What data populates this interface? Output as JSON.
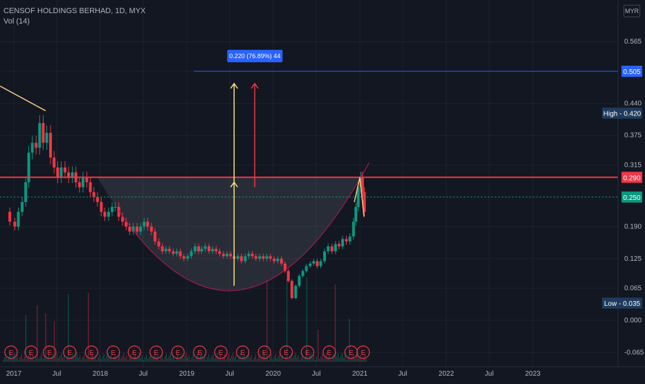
{
  "header": {
    "title": "CENSOF HOLDINGS BERHAD, 1D, MYX",
    "indicator": "Vol (14)",
    "currency": "MYR"
  },
  "chart_data": {
    "type": "candlestick",
    "title": "CENSOF HOLDINGS BERHAD, 1D, MYX",
    "y_ticks": [
      "0.565",
      "0.505",
      "0.440",
      "0.375",
      "0.315",
      "0.250",
      "0.190",
      "0.125",
      "0.065",
      "0.000",
      "-0.065"
    ],
    "x_ticks": [
      "2017",
      "Jul",
      "2018",
      "Jul",
      "2019",
      "Jul",
      "2020",
      "Jul",
      "2021",
      "Jul",
      "2022",
      "Jul",
      "2023"
    ],
    "price_labels": [
      {
        "text": "0.505",
        "value": 0.505,
        "color": "#2962ff"
      },
      {
        "text": "High - 0.420",
        "value": 0.42,
        "color": "#1e3a5c"
      },
      {
        "text": "0.290",
        "value": 0.29,
        "color": "#f23645"
      },
      {
        "text": "0.250",
        "value": 0.25,
        "color": "#089981"
      },
      {
        "text": "Low - 0.035",
        "value": 0.035,
        "color": "#1e3a5c"
      }
    ],
    "measure_label": "0.220 (76.89%) 44",
    "horizontal_lines": [
      {
        "value": 0.29,
        "color": "#f23645"
      },
      {
        "value": 0.505,
        "color": "#2962ff"
      },
      {
        "value": 0.25,
        "color": "#089981",
        "style": "dotted"
      }
    ],
    "earnings_markers": [
      "E",
      "E",
      "E",
      "E",
      "E",
      "E",
      "E",
      "E",
      "E",
      "E",
      "E",
      "E",
      "E",
      "E",
      "E",
      "E",
      "E",
      "E"
    ],
    "price_series": [
      [
        "2016-12-01",
        0.22
      ],
      [
        "2016-12-15",
        0.2
      ],
      [
        "2017-01-05",
        0.19
      ],
      [
        "2017-01-20",
        0.22
      ],
      [
        "2017-02-05",
        0.24
      ],
      [
        "2017-02-20",
        0.28
      ],
      [
        "2017-03-05",
        0.34
      ],
      [
        "2017-03-20",
        0.36
      ],
      [
        "2017-04-05",
        0.35
      ],
      [
        "2017-04-20",
        0.4
      ],
      [
        "2017-05-05",
        0.36
      ],
      [
        "2017-05-20",
        0.38
      ],
      [
        "2017-06-05",
        0.33
      ],
      [
        "2017-06-20",
        0.31
      ],
      [
        "2017-07-05",
        0.29
      ],
      [
        "2017-07-20",
        0.31
      ],
      [
        "2017-08-05",
        0.3
      ],
      [
        "2017-08-20",
        0.29
      ],
      [
        "2017-09-05",
        0.3
      ],
      [
        "2017-09-20",
        0.28
      ],
      [
        "2017-10-05",
        0.27
      ],
      [
        "2017-10-20",
        0.29
      ],
      [
        "2017-11-05",
        0.28
      ],
      [
        "2017-11-20",
        0.26
      ],
      [
        "2017-12-05",
        0.25
      ],
      [
        "2017-12-20",
        0.24
      ],
      [
        "2018-01-05",
        0.22
      ],
      [
        "2018-01-20",
        0.21
      ],
      [
        "2018-02-05",
        0.22
      ],
      [
        "2018-02-20",
        0.23
      ],
      [
        "2018-03-05",
        0.23
      ],
      [
        "2018-03-20",
        0.21
      ],
      [
        "2018-04-05",
        0.2
      ],
      [
        "2018-04-20",
        0.19
      ],
      [
        "2018-05-05",
        0.18
      ],
      [
        "2018-05-20",
        0.19
      ],
      [
        "2018-06-05",
        0.18
      ],
      [
        "2018-06-20",
        0.19
      ],
      [
        "2018-07-05",
        0.2
      ],
      [
        "2018-07-20",
        0.19
      ],
      [
        "2018-08-05",
        0.18
      ],
      [
        "2018-08-20",
        0.16
      ],
      [
        "2018-09-05",
        0.15
      ],
      [
        "2018-09-20",
        0.14
      ],
      [
        "2018-10-05",
        0.145
      ],
      [
        "2018-10-20",
        0.14
      ],
      [
        "2018-11-05",
        0.135
      ],
      [
        "2018-11-20",
        0.14
      ],
      [
        "2018-12-05",
        0.13
      ],
      [
        "2018-12-20",
        0.125
      ],
      [
        "2019-01-05",
        0.13
      ],
      [
        "2019-01-20",
        0.14
      ],
      [
        "2019-02-05",
        0.15
      ],
      [
        "2019-02-20",
        0.14
      ],
      [
        "2019-03-05",
        0.145
      ],
      [
        "2019-03-20",
        0.15
      ],
      [
        "2019-04-05",
        0.14
      ],
      [
        "2019-04-20",
        0.145
      ],
      [
        "2019-05-05",
        0.14
      ],
      [
        "2019-05-20",
        0.135
      ],
      [
        "2019-06-05",
        0.13
      ],
      [
        "2019-06-20",
        0.135
      ],
      [
        "2019-07-05",
        0.13
      ],
      [
        "2019-07-20",
        0.125
      ],
      [
        "2019-08-05",
        0.13
      ],
      [
        "2019-08-20",
        0.12
      ],
      [
        "2019-09-05",
        0.13
      ],
      [
        "2019-09-20",
        0.135
      ],
      [
        "2019-10-05",
        0.13
      ],
      [
        "2019-10-20",
        0.125
      ],
      [
        "2019-11-05",
        0.13
      ],
      [
        "2019-11-20",
        0.125
      ],
      [
        "2019-12-05",
        0.13
      ],
      [
        "2019-12-20",
        0.125
      ],
      [
        "2020-01-05",
        0.12
      ],
      [
        "2020-01-20",
        0.125
      ],
      [
        "2020-02-05",
        0.115
      ],
      [
        "2020-02-20",
        0.1
      ],
      [
        "2020-03-05",
        0.08
      ],
      [
        "2020-03-20",
        0.045
      ],
      [
        "2020-04-05",
        0.07
      ],
      [
        "2020-04-20",
        0.09
      ],
      [
        "2020-05-05",
        0.1
      ],
      [
        "2020-05-20",
        0.11
      ],
      [
        "2020-06-05",
        0.115
      ],
      [
        "2020-06-20",
        0.12
      ],
      [
        "2020-07-05",
        0.11
      ],
      [
        "2020-07-20",
        0.12
      ],
      [
        "2020-08-05",
        0.14
      ],
      [
        "2020-08-20",
        0.15
      ],
      [
        "2020-09-05",
        0.14
      ],
      [
        "2020-09-20",
        0.155
      ],
      [
        "2020-10-05",
        0.15
      ],
      [
        "2020-10-20",
        0.165
      ],
      [
        "2020-11-05",
        0.16
      ],
      [
        "2020-11-20",
        0.17
      ],
      [
        "2020-12-05",
        0.2
      ],
      [
        "2020-12-15",
        0.23
      ],
      [
        "2020-12-25",
        0.27
      ],
      [
        "2021-01-05",
        0.29
      ],
      [
        "2021-01-12",
        0.26
      ],
      [
        "2021-01-20",
        0.22
      ]
    ]
  }
}
